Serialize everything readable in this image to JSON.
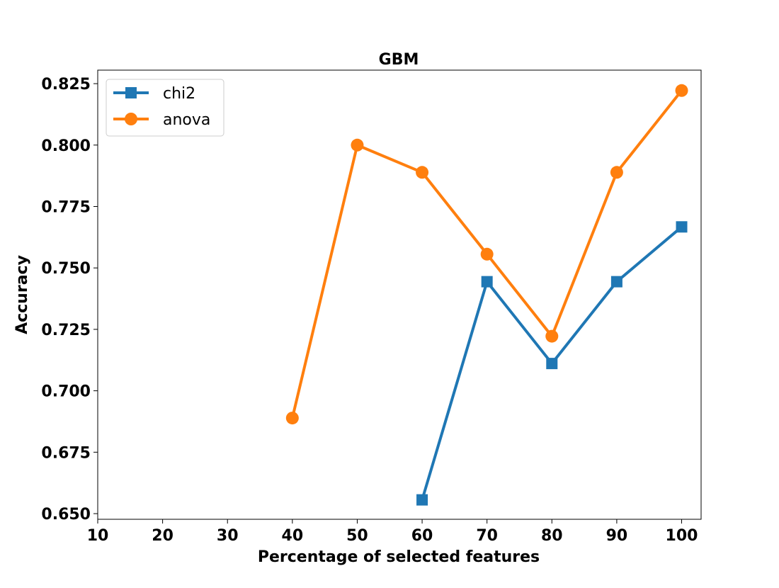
{
  "chart_data": {
    "type": "line",
    "title": "GBM",
    "xlabel": "Percentage of selected features",
    "ylabel": "Accuracy",
    "x_ticks": [
      10,
      20,
      30,
      40,
      50,
      60,
      70,
      80,
      90,
      100
    ],
    "x_tick_labels": [
      "10",
      "20",
      "30",
      "40",
      "50",
      "60",
      "70",
      "80",
      "90",
      "100"
    ],
    "y_ticks": [
      0.65,
      0.675,
      0.7,
      0.725,
      0.75,
      0.775,
      0.8,
      0.825
    ],
    "y_tick_labels": [
      "0.650",
      "0.675",
      "0.700",
      "0.725",
      "0.750",
      "0.775",
      "0.800",
      "0.825"
    ],
    "xlim": [
      10,
      103
    ],
    "ylim": [
      0.6477,
      0.8305
    ],
    "grid": false,
    "legend_position": "top-left",
    "series": [
      {
        "name": "chi2",
        "color": "#1f77b4",
        "marker": "square",
        "x": [
          60,
          70,
          80,
          90,
          100
        ],
        "y": [
          0.6556,
          0.7444,
          0.7111,
          0.7444,
          0.7667
        ]
      },
      {
        "name": "anova",
        "color": "#ff7f0e",
        "marker": "circle",
        "x": [
          40,
          50,
          60,
          70,
          80,
          90,
          100
        ],
        "y": [
          0.6889,
          0.8,
          0.7889,
          0.7556,
          0.7222,
          0.7889,
          0.8222
        ]
      }
    ]
  }
}
